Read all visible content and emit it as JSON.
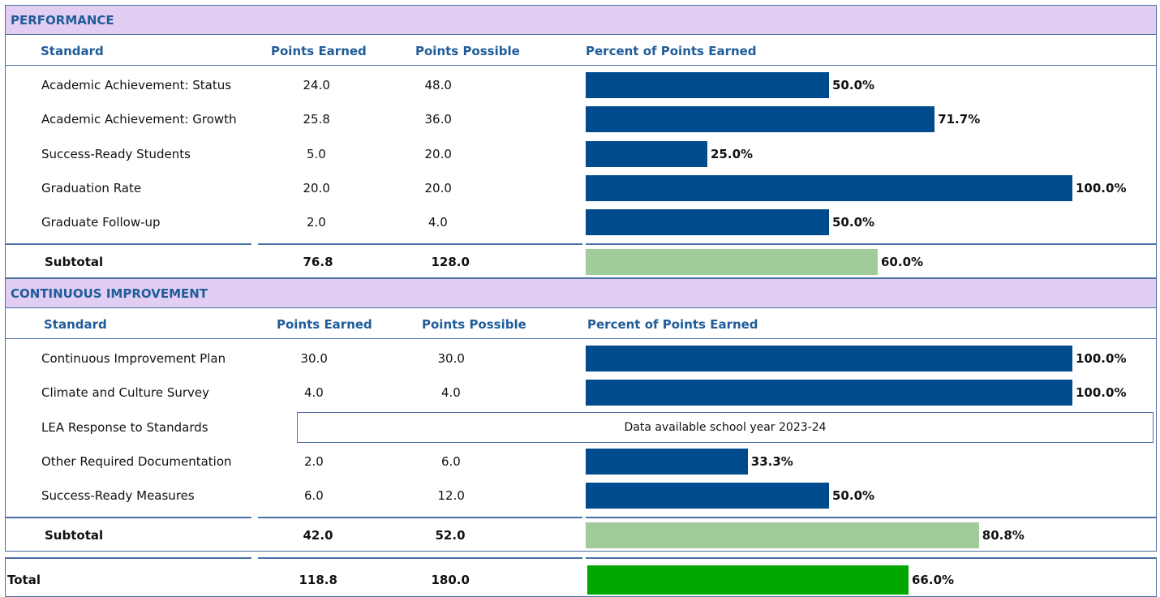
{
  "sections": [
    {
      "title": "PERFORMANCE",
      "columns": [
        "Standard",
        "Points Earned",
        "Points Possible",
        "Percent of Points Earned"
      ],
      "rows": [
        {
          "standard": "Academic Achievement: Status",
          "earned": "24.0",
          "possible": "48.0",
          "percent": 50.0,
          "percent_label": "50.0%"
        },
        {
          "standard": "Academic Achievement: Growth",
          "earned": "25.8",
          "possible": "36.0",
          "percent": 71.7,
          "percent_label": "71.7%"
        },
        {
          "standard": "Success-Ready Students",
          "earned": "5.0",
          "possible": "20.0",
          "percent": 25.0,
          "percent_label": "25.0%"
        },
        {
          "standard": "Graduation Rate",
          "earned": "20.0",
          "possible": "20.0",
          "percent": 100.0,
          "percent_label": "100.0%"
        },
        {
          "standard": "Graduate Follow-up",
          "earned": "2.0",
          "possible": "4.0",
          "percent": 50.0,
          "percent_label": "50.0%"
        }
      ],
      "subtotal": {
        "label": "Subtotal",
        "earned": "76.8",
        "possible": "128.0",
        "percent": 60.0,
        "percent_label": "60.0%"
      }
    },
    {
      "title": "CONTINUOUS IMPROVEMENT",
      "columns": [
        "Standard",
        "Points Earned",
        "Points Possible",
        "Percent of Points Earned"
      ],
      "rows": [
        {
          "standard": "Continuous Improvement Plan",
          "earned": "30.0",
          "possible": "30.0",
          "percent": 100.0,
          "percent_label": "100.0%"
        },
        {
          "standard": "Climate and Culture Survey",
          "earned": "4.0",
          "possible": "4.0",
          "percent": 100.0,
          "percent_label": "100.0%"
        },
        {
          "standard": "LEA Response to Standards",
          "note": "Data available school year 2023-24"
        },
        {
          "standard": "Other Required Documentation",
          "earned": "2.0",
          "possible": "6.0",
          "percent": 33.3,
          "percent_label": "33.3%"
        },
        {
          "standard": "Success-Ready Measures",
          "earned": "6.0",
          "possible": "12.0",
          "percent": 50.0,
          "percent_label": "50.0%"
        }
      ],
      "subtotal": {
        "label": "Subtotal",
        "earned": "42.0",
        "possible": "52.0",
        "percent": 80.8,
        "percent_label": "80.8%"
      }
    }
  ],
  "total": {
    "label": "Total",
    "earned": "118.8",
    "possible": "180.0",
    "percent": 66.0,
    "percent_label": "66.0%"
  },
  "colors": {
    "bar": "#004b8d",
    "subtotal": "#a2cb9c",
    "total": "#00a800"
  }
}
